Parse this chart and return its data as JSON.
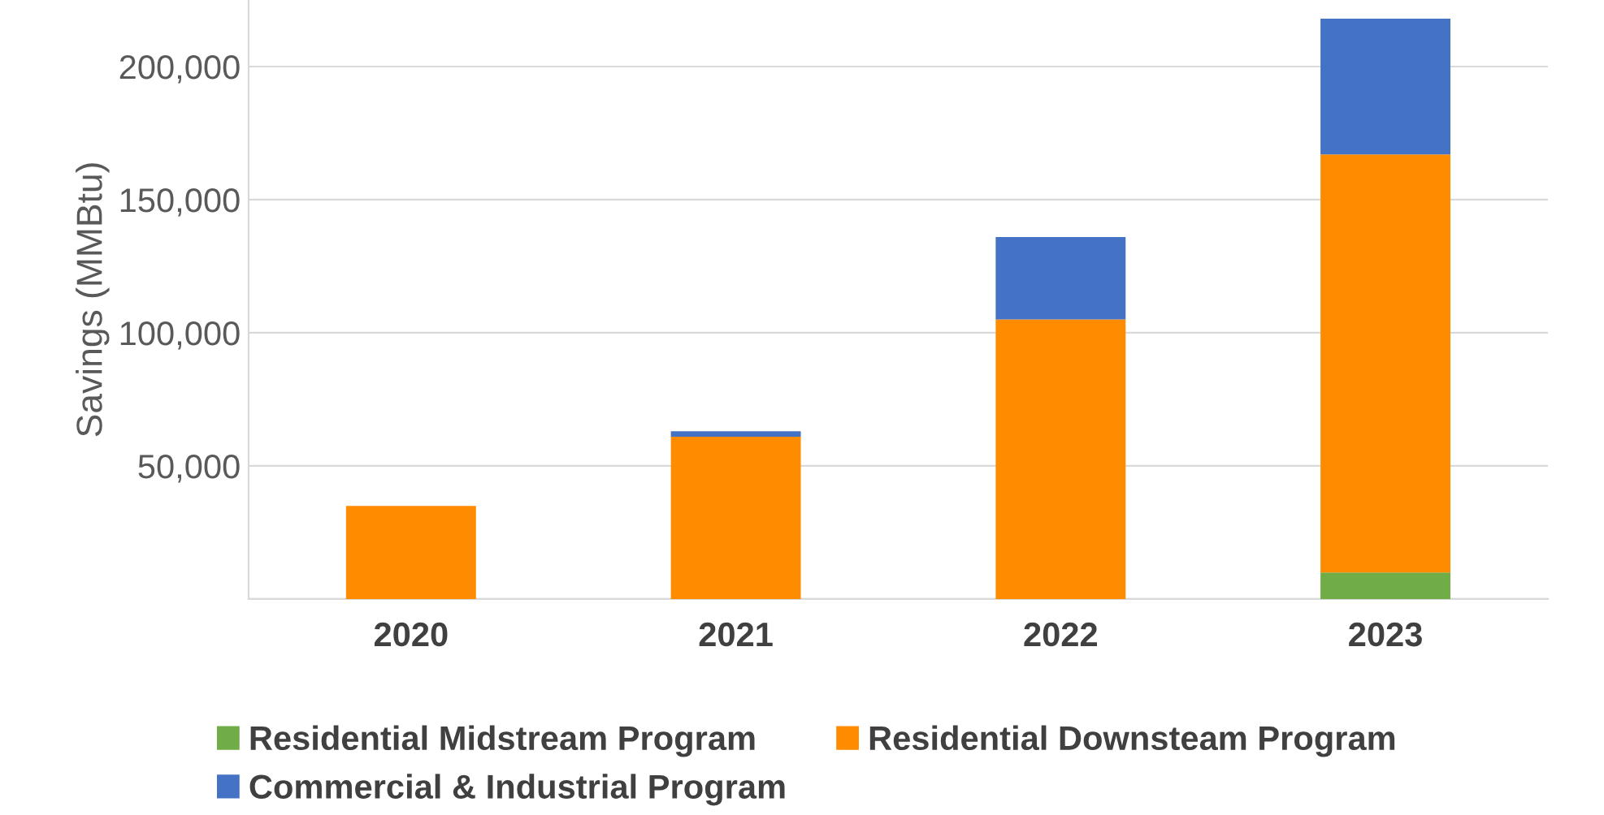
{
  "chart_data": {
    "type": "bar",
    "stacked": true,
    "ylabel": "Savings (MMBtu)",
    "categories": [
      "2020",
      "2021",
      "2022",
      "2023"
    ],
    "series": [
      {
        "name": "Residential Midstream Program",
        "color": "#70ad47",
        "values": [
          null,
          null,
          null,
          10000
        ]
      },
      {
        "name": "Residential Downsteam Program",
        "color": "#ff8c00",
        "values": [
          35000,
          61000,
          105000,
          157000
        ]
      },
      {
        "name": "Commercial & Industrial Program",
        "color": "#4472c4",
        "values": [
          null,
          2000,
          31000,
          51000
        ]
      }
    ],
    "ylim": [
      0,
      225000
    ],
    "yticks": [
      {
        "value": 0,
        "label": null
      },
      {
        "value": 50000,
        "label": "50,000"
      },
      {
        "value": 100000,
        "label": "100,000"
      },
      {
        "value": 150000,
        "label": "150,000"
      },
      {
        "value": 200000,
        "label": "200,000"
      }
    ],
    "grid": "y",
    "legend": "bottom"
  }
}
